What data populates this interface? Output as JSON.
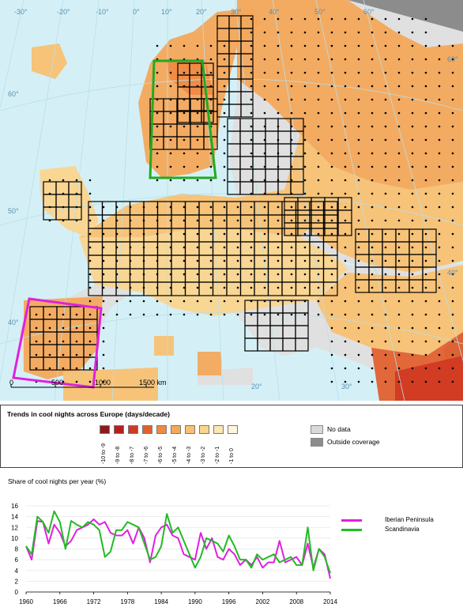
{
  "map": {
    "lon_labels": [
      "-30°",
      "-20°",
      "-10°",
      "0°",
      "10°",
      "20°",
      "30°",
      "40°",
      "50°",
      "60°"
    ],
    "lat_labels": [
      "60°",
      "50°",
      "40°",
      "40°",
      "60°"
    ],
    "inner_lon_labels": [
      "20°",
      "30°"
    ],
    "scale_labels": [
      "0",
      "500",
      "1000",
      "1500 km"
    ],
    "region_outlines": [
      {
        "name": "Scandinavia",
        "color": "#22aa22"
      },
      {
        "name": "Iberian Peninsula",
        "color": "#e020e0"
      }
    ]
  },
  "legend": {
    "title": "Trends in cool nights across Europe  (days/decade)",
    "classes": [
      {
        "label": "-10 to -9",
        "color": "#8b1a1a"
      },
      {
        "label": "-9 to -8",
        "color": "#b32020"
      },
      {
        "label": "-8 to -7",
        "color": "#d03a22"
      },
      {
        "label": "-7 to -6",
        "color": "#e2602f"
      },
      {
        "label": "-6 to -5",
        "color": "#ef8a43"
      },
      {
        "label": "-5 to -4",
        "color": "#f3a85b"
      },
      {
        "label": "-4 to -3",
        "color": "#f7c173"
      },
      {
        "label": "-3 to -2",
        "color": "#fad58f"
      },
      {
        "label": "-2 to -1",
        "color": "#fce6b2"
      },
      {
        "label": "-1 to 0",
        "color": "#fff6dc"
      }
    ],
    "no_data": {
      "label": "No data",
      "color": "#d9d9d9"
    },
    "outside": {
      "label": "Outside coverage",
      "color": "#8c8c8c"
    }
  },
  "chart": {
    "title": "Share of cool nights per year (%)"
  },
  "chart_data": {
    "type": "line",
    "x": [
      1960,
      1961,
      1962,
      1963,
      1964,
      1965,
      1966,
      1967,
      1968,
      1969,
      1970,
      1971,
      1972,
      1973,
      1974,
      1975,
      1976,
      1977,
      1978,
      1979,
      1980,
      1981,
      1982,
      1983,
      1984,
      1985,
      1986,
      1987,
      1988,
      1989,
      1990,
      1991,
      1992,
      1993,
      1994,
      1995,
      1996,
      1997,
      1998,
      1999,
      2000,
      2001,
      2002,
      2003,
      2004,
      2005,
      2006,
      2007,
      2008,
      2009,
      2010,
      2011,
      2012,
      2013,
      2014
    ],
    "x_ticks": [
      1960,
      1966,
      1972,
      1978,
      1984,
      1990,
      1996,
      2002,
      2008,
      2014
    ],
    "y_ticks": [
      0,
      2,
      4,
      6,
      8,
      10,
      12,
      14,
      16
    ],
    "ylim": [
      0,
      16
    ],
    "series": [
      {
        "name": "Iberian Peninsula",
        "color": "#e020e0",
        "values": [
          8.5,
          6.0,
          13.2,
          13.0,
          9.0,
          12.5,
          11.0,
          8.5,
          9.5,
          11.5,
          12.0,
          12.5,
          13.5,
          12.5,
          13.0,
          11.0,
          10.5,
          10.5,
          11.5,
          9.0,
          12.0,
          10.0,
          5.5,
          10.5,
          12.0,
          12.5,
          10.5,
          10.0,
          7.0,
          6.5,
          6.0,
          11.0,
          8.0,
          10.0,
          6.5,
          6.0,
          8.0,
          7.0,
          5.0,
          6.0,
          5.0,
          6.5,
          4.5,
          5.5,
          5.5,
          9.5,
          5.5,
          6.0,
          6.5,
          5.0,
          9.0,
          4.5,
          8.0,
          7.0,
          2.5
        ]
      },
      {
        "name": "Scandinavia",
        "color": "#22bb22",
        "values": [
          8.5,
          7.0,
          14.0,
          13.0,
          11.0,
          15.0,
          13.0,
          8.0,
          13.2,
          12.5,
          12.0,
          13.0,
          12.5,
          11.5,
          6.5,
          7.5,
          11.5,
          11.5,
          13.0,
          12.5,
          12.0,
          9.0,
          6.0,
          6.5,
          8.5,
          14.5,
          11.0,
          12.0,
          9.5,
          7.0,
          4.5,
          6.5,
          10.0,
          9.5,
          9.0,
          7.5,
          10.5,
          8.5,
          6.0,
          6.0,
          4.5,
          7.0,
          6.0,
          6.5,
          7.0,
          5.5,
          6.0,
          6.5,
          5.0,
          5.0,
          12.0,
          4.0,
          8.0,
          6.5,
          3.5
        ]
      }
    ]
  }
}
